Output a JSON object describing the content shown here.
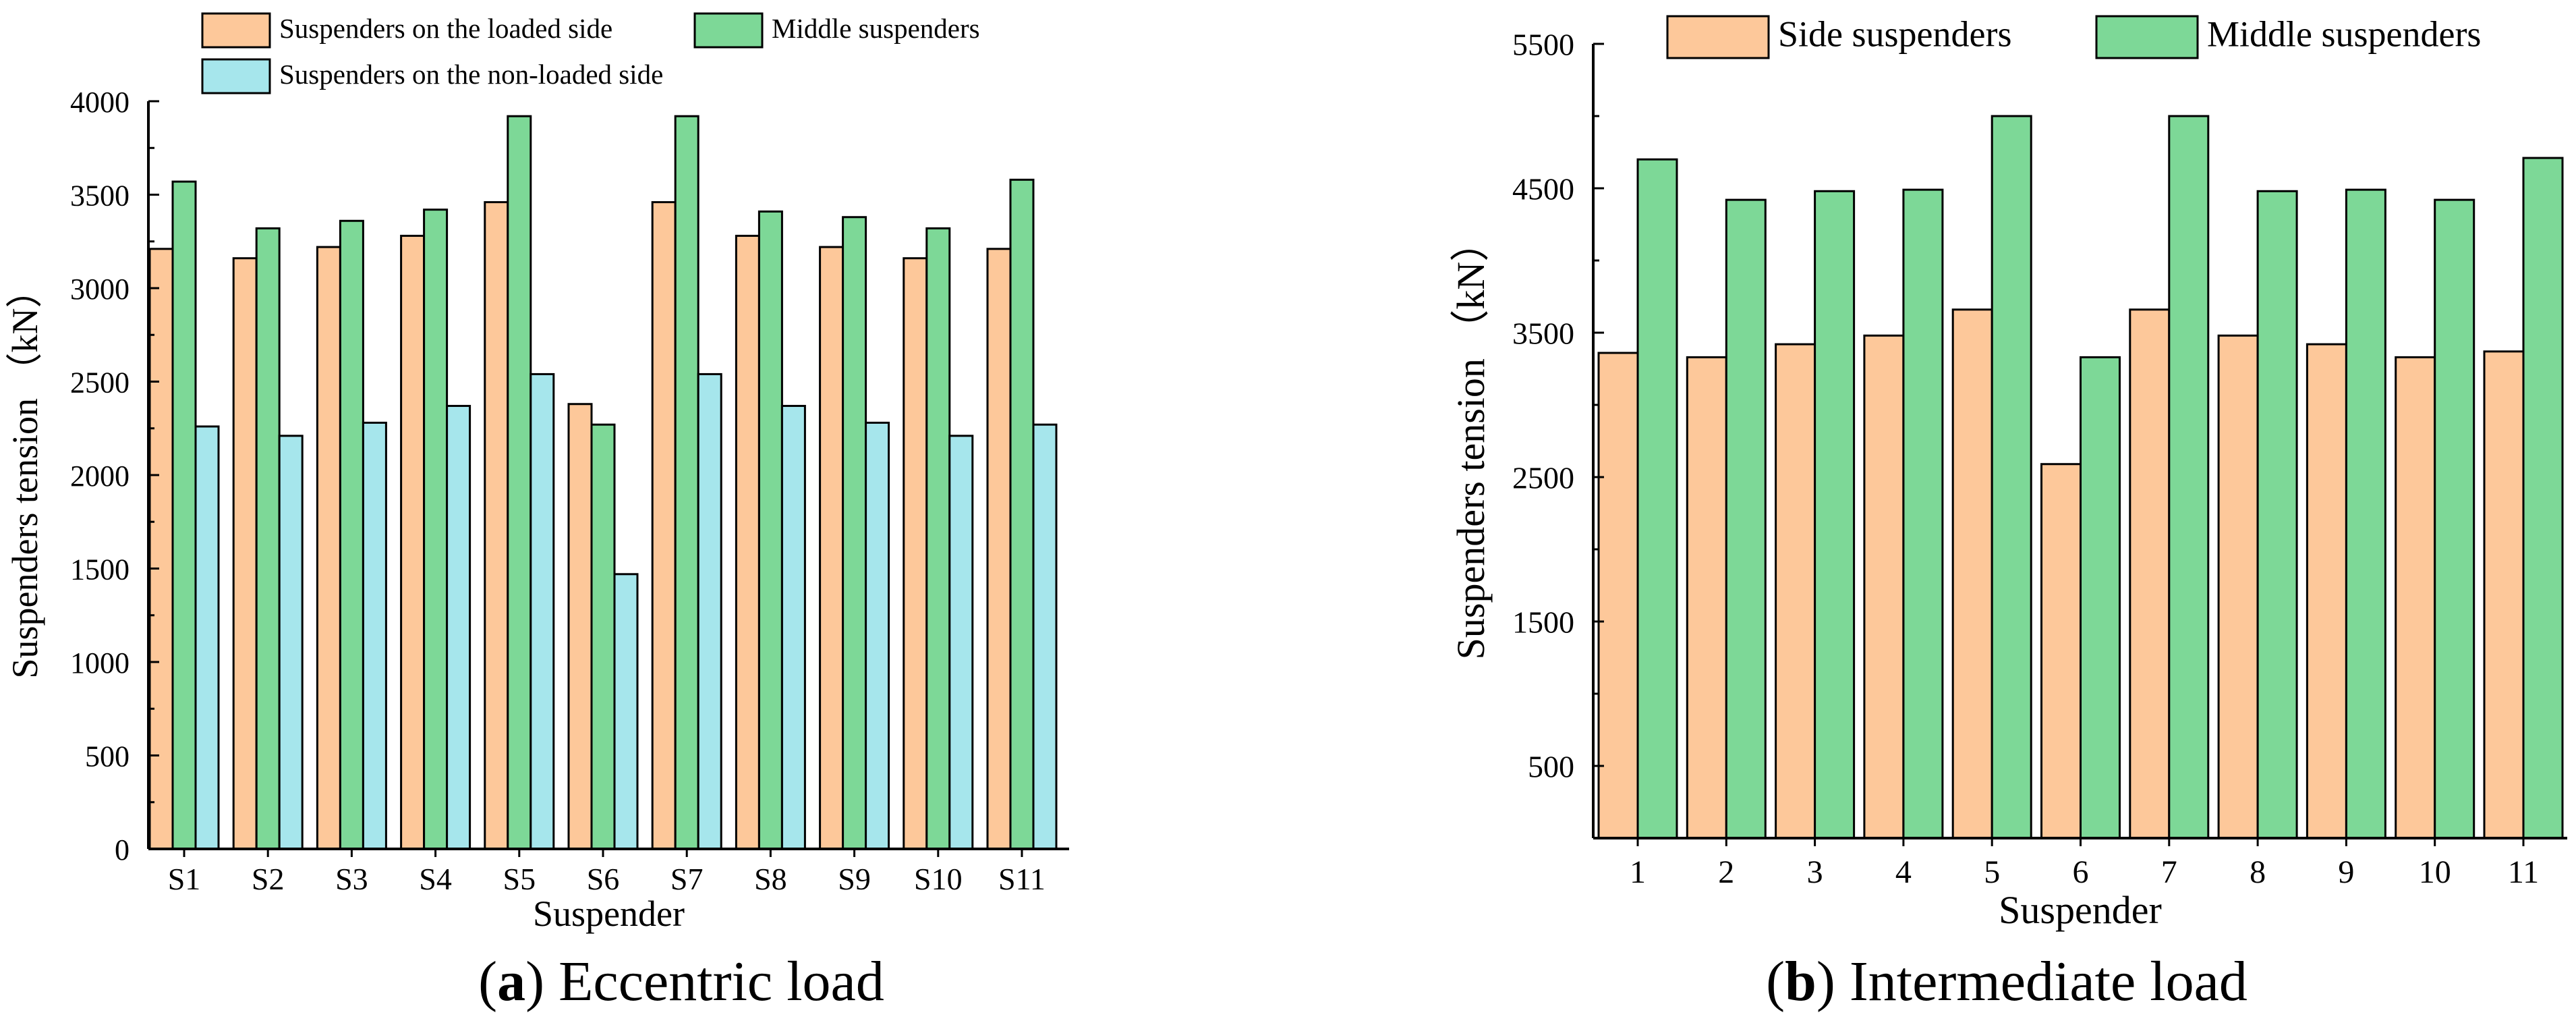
{
  "colors": {
    "loaded": "#FDC89A",
    "middle": "#7DD897",
    "nonloaded": "#A6E6EC",
    "side": "#FDC89A",
    "axis": "#000000",
    "background": "#ffffff"
  },
  "captions": {
    "a": {
      "letter": "a",
      "open": "(",
      "close": ")",
      "text": " Eccentric load"
    },
    "b": {
      "letter": "b",
      "open": "(",
      "close": ")",
      "text": " Intermediate load"
    }
  },
  "chart_data": [
    {
      "type": "bar",
      "panel": "a",
      "xlabel": "Suspender",
      "ylabel": "Suspenders tension （kN）",
      "ylim": [
        0,
        4000
      ],
      "yticks": [
        0,
        500,
        1000,
        1500,
        2000,
        2500,
        3000,
        3500,
        4000
      ],
      "categories": [
        "S1",
        "S2",
        "S3",
        "S4",
        "S5",
        "S6",
        "S7",
        "S8",
        "S9",
        "S10",
        "S11"
      ],
      "legend_position": "top",
      "series": [
        {
          "name": "Suspenders on the loaded side",
          "color_key": "loaded",
          "values": [
            3210,
            3160,
            3220,
            3280,
            3460,
            2380,
            3460,
            3280,
            3220,
            3160,
            3210
          ]
        },
        {
          "name": "Middle suspenders",
          "color_key": "middle",
          "values": [
            3570,
            3320,
            3360,
            3420,
            3920,
            2270,
            3920,
            3410,
            3380,
            3320,
            3580
          ]
        },
        {
          "name": "Suspenders on the non-loaded side",
          "color_key": "nonloaded",
          "values": [
            2260,
            2210,
            2280,
            2370,
            2540,
            1470,
            2540,
            2370,
            2280,
            2210,
            2270
          ]
        }
      ]
    },
    {
      "type": "bar",
      "panel": "b",
      "xlabel": "Suspender",
      "ylabel": "Suspenders tension （kN）",
      "ylim": [
        0,
        5500
      ],
      "yticks": [
        500,
        1500,
        2500,
        3500,
        4500,
        5500
      ],
      "categories": [
        "1",
        "2",
        "3",
        "4",
        "5",
        "6",
        "7",
        "8",
        "9",
        "10",
        "11"
      ],
      "legend_position": "top",
      "series": [
        {
          "name": "Side suspenders",
          "color_key": "side",
          "values": [
            3360,
            3330,
            3420,
            3480,
            3660,
            2590,
            3660,
            3480,
            3420,
            3330,
            3370
          ]
        },
        {
          "name": "Middle suspenders",
          "color_key": "middle",
          "values": [
            4700,
            4420,
            4480,
            4490,
            5000,
            3330,
            5000,
            4480,
            4490,
            4420,
            4710
          ]
        }
      ]
    }
  ]
}
